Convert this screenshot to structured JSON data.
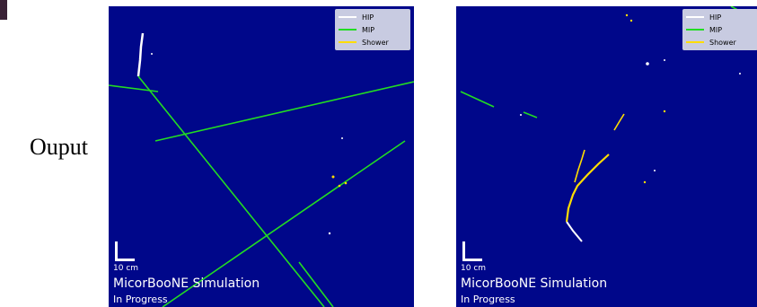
{
  "side_label": "Ouput",
  "legend": {
    "entries": [
      {
        "label": "HIP",
        "color": "#ffffff"
      },
      {
        "label": "MIP",
        "color": "#22dd22"
      },
      {
        "label": "Shower",
        "color": "#ffdd00"
      }
    ]
  },
  "panels": [
    {
      "scale_label": "10 cm",
      "title": "MicorBooNE Simulation",
      "status": "In Progress"
    },
    {
      "scale_label": "10 cm",
      "title": "MicorBooNE Simulation",
      "status": "In Progress"
    }
  ],
  "colors": {
    "background": "#00078a",
    "hip": "#ffffff",
    "mip": "#22dd22",
    "shower": "#ffdd00"
  }
}
